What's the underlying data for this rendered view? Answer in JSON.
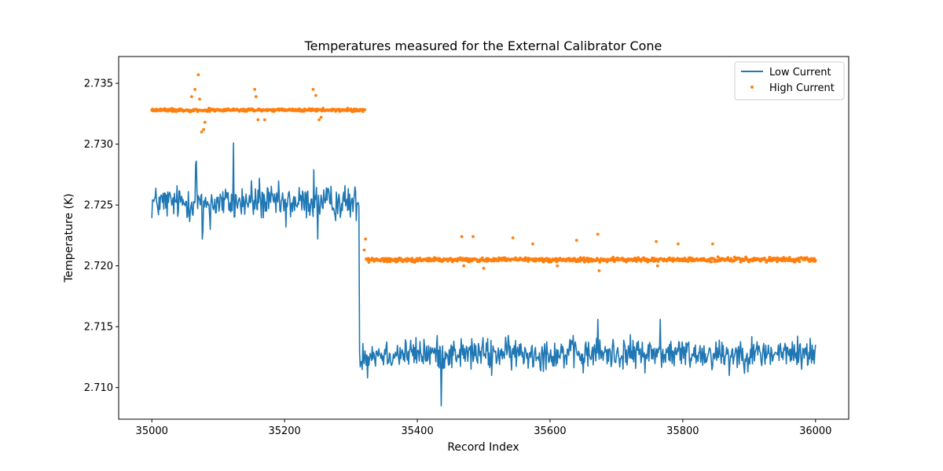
{
  "chart_data": {
    "type": "line",
    "title": "Temperatures measured for the External Calibrator Cone",
    "xlabel": "Record Index",
    "ylabel": "Temperature (K)",
    "xlim": [
      34950,
      36050
    ],
    "ylim": [
      2.7074,
      2.7372
    ],
    "xticks": [
      35000,
      35200,
      35400,
      35600,
      35800,
      36000
    ],
    "yticks": [
      2.71,
      2.715,
      2.72,
      2.725,
      2.73,
      2.735
    ],
    "ytick_labels": [
      "2.710",
      "2.715",
      "2.720",
      "2.725",
      "2.730",
      "2.735"
    ],
    "grid": false,
    "legend_position": "top-right",
    "x_start": 35000,
    "x_end": 36000,
    "step_index": 35313,
    "series": [
      {
        "name": "Low Current",
        "style": "line",
        "color": "#1f77b4",
        "segments": [
          {
            "from": 35000,
            "to": 35312,
            "baseline": 2.7252,
            "noise": 0.0012
          },
          {
            "from": 35313,
            "to": 36000,
            "baseline": 2.7128,
            "noise": 0.0011
          }
        ],
        "spikes": [
          {
            "x": 35055,
            "y": 2.7261
          },
          {
            "x": 35066,
            "y": 2.7284
          },
          {
            "x": 35067,
            "y": 2.7286
          },
          {
            "x": 35068,
            "y": 2.7262
          },
          {
            "x": 35076,
            "y": 2.7222
          },
          {
            "x": 35077,
            "y": 2.7229
          },
          {
            "x": 35088,
            "y": 2.723
          },
          {
            "x": 35123,
            "y": 2.7301
          },
          {
            "x": 35124,
            "y": 2.724
          },
          {
            "x": 35150,
            "y": 2.727
          },
          {
            "x": 35162,
            "y": 2.7272
          },
          {
            "x": 35202,
            "y": 2.7232
          },
          {
            "x": 35244,
            "y": 2.7279
          },
          {
            "x": 35250,
            "y": 2.7222
          },
          {
            "x": 35314,
            "y": 2.7117
          },
          {
            "x": 35325,
            "y": 2.7108
          },
          {
            "x": 35436,
            "y": 2.7085
          },
          {
            "x": 35512,
            "y": 2.711
          },
          {
            "x": 35650,
            "y": 2.7112
          },
          {
            "x": 35672,
            "y": 2.7156
          },
          {
            "x": 35766,
            "y": 2.7156
          },
          {
            "x": 35870,
            "y": 2.711
          }
        ]
      },
      {
        "name": "High Current",
        "style": "scatter",
        "color": "#ff7f0e",
        "segments": [
          {
            "from": 35000,
            "to": 35322,
            "baseline": 2.7328,
            "noise": 0.0001
          },
          {
            "from": 35323,
            "to": 36000,
            "baseline": 2.7205,
            "noise": 0.00015
          }
        ],
        "spikes": [
          {
            "x": 35060,
            "y": 2.7339
          },
          {
            "x": 35065,
            "y": 2.7345
          },
          {
            "x": 35070,
            "y": 2.7357
          },
          {
            "x": 35072,
            "y": 2.7337
          },
          {
            "x": 35075,
            "y": 2.731
          },
          {
            "x": 35078,
            "y": 2.7312
          },
          {
            "x": 35080,
            "y": 2.7318
          },
          {
            "x": 35155,
            "y": 2.7345
          },
          {
            "x": 35157,
            "y": 2.7339
          },
          {
            "x": 35160,
            "y": 2.732
          },
          {
            "x": 35170,
            "y": 2.732
          },
          {
            "x": 35243,
            "y": 2.7345
          },
          {
            "x": 35247,
            "y": 2.734
          },
          {
            "x": 35252,
            "y": 2.732
          },
          {
            "x": 35255,
            "y": 2.7322
          },
          {
            "x": 35320,
            "y": 2.7213
          },
          {
            "x": 35322,
            "y": 2.7222
          },
          {
            "x": 35467,
            "y": 2.7224
          },
          {
            "x": 35470,
            "y": 2.72
          },
          {
            "x": 35484,
            "y": 2.7224
          },
          {
            "x": 35500,
            "y": 2.7198
          },
          {
            "x": 35544,
            "y": 2.7223
          },
          {
            "x": 35574,
            "y": 2.7218
          },
          {
            "x": 35611,
            "y": 2.72
          },
          {
            "x": 35640,
            "y": 2.7221
          },
          {
            "x": 35672,
            "y": 2.7226
          },
          {
            "x": 35674,
            "y": 2.7196
          },
          {
            "x": 35760,
            "y": 2.722
          },
          {
            "x": 35762,
            "y": 2.72
          },
          {
            "x": 35793,
            "y": 2.7218
          },
          {
            "x": 35845,
            "y": 2.7218
          }
        ]
      }
    ]
  }
}
